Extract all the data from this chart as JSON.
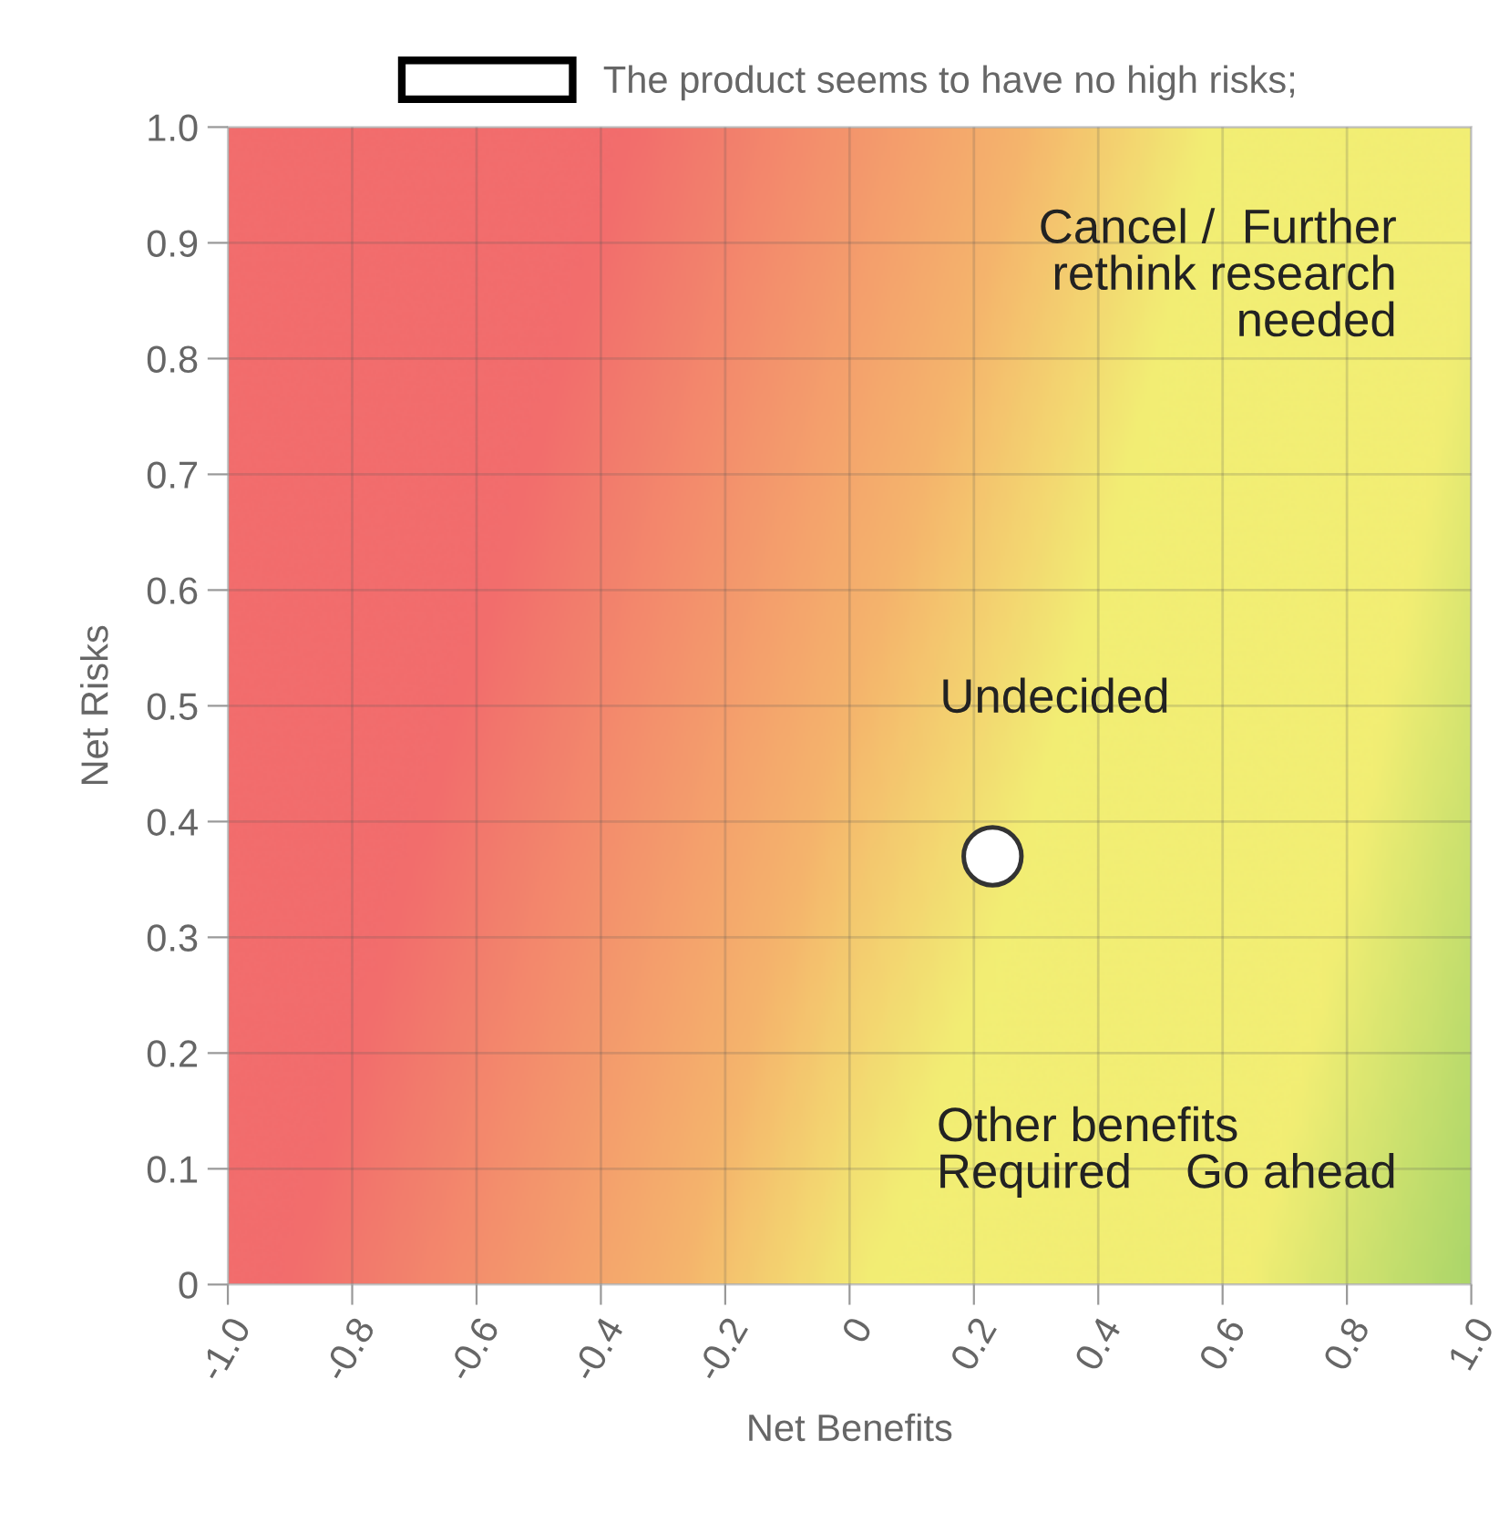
{
  "chart_data": {
    "type": "scatter",
    "xlabel": "Net Benefits",
    "ylabel": "Net Risks",
    "series": [
      {
        "name": "The product seems to have no high risks;",
        "color": "#ffffff",
        "x": [
          0.23
        ],
        "values": [
          0.37
        ]
      }
    ],
    "annotations": [
      "Cancel /  Further\nrethink research\nneeded",
      "Undecided",
      "Other benefits\nRequired",
      "Go ahead"
    ],
    "xlim": [
      -1,
      1
    ],
    "ylim": [
      0,
      1
    ],
    "xticks": [
      {
        "value": -1,
        "label": "-1.0"
      },
      {
        "value": -0.8,
        "label": "-0.8"
      },
      {
        "value": -0.6,
        "label": "-0.6"
      },
      {
        "value": -0.4,
        "label": "-0.4"
      },
      {
        "value": -0.2,
        "label": "-0.2"
      },
      0,
      0.2,
      0.4,
      0.6,
      0.8,
      {
        "value": 1,
        "label": "1.0"
      }
    ],
    "yticks": [
      0,
      0.1,
      0.2,
      0.3,
      0.4,
      0.5,
      0.6,
      0.7,
      0.8,
      0.9,
      {
        "value": 1,
        "label": "1.0"
      }
    ],
    "grid": true,
    "legend": "top",
    "marker": "circle"
  }
}
